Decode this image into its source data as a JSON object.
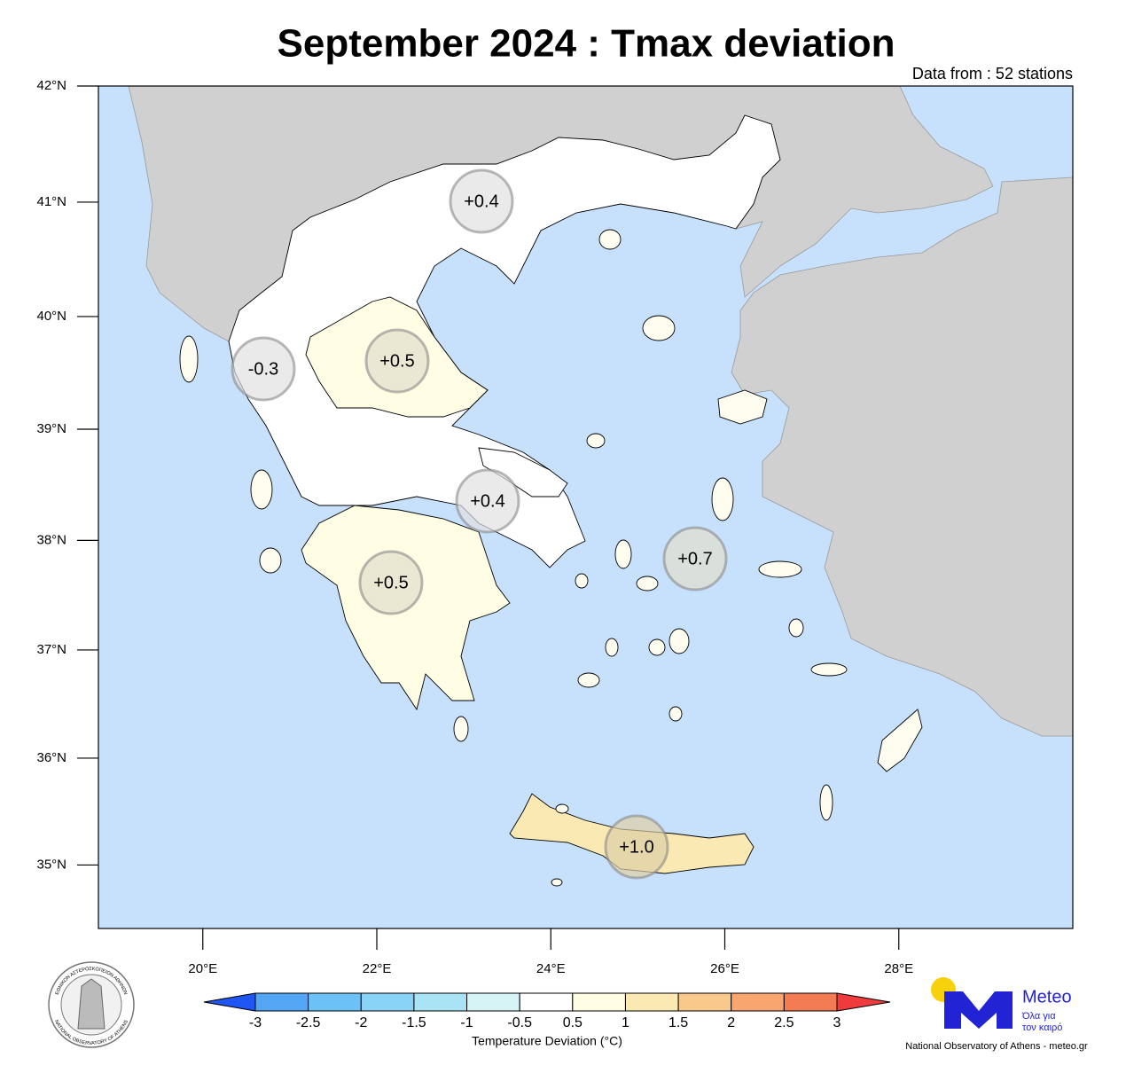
{
  "title": "September 2024 : Tmax deviation",
  "subtitle": "Data from : 52 stations",
  "map": {
    "xlim": [
      18.8,
      30
    ],
    "ylim": [
      34.4,
      42
    ],
    "xticks": [
      {
        "value": 20,
        "label": "20°E"
      },
      {
        "value": 22,
        "label": "22°E"
      },
      {
        "value": 24,
        "label": "24°E"
      },
      {
        "value": 26,
        "label": "26°E"
      },
      {
        "value": 28,
        "label": "28°E"
      }
    ],
    "yticks": [
      {
        "value": 35,
        "label": "35°N"
      },
      {
        "value": 36,
        "label": "36°N"
      },
      {
        "value": 37,
        "label": "37°N"
      },
      {
        "value": 38,
        "label": "38°N"
      },
      {
        "value": 39,
        "label": "39°N"
      },
      {
        "value": 40,
        "label": "40°N"
      },
      {
        "value": 41,
        "label": "41°N"
      },
      {
        "value": 42,
        "label": "42°N"
      }
    ]
  },
  "regions": {
    "values": [
      0.4,
      -0.3,
      0.5,
      0.4,
      0.5,
      0.7,
      1.0
    ],
    "value_labels": [
      "+0.4",
      "-0.3",
      "+0.5",
      "+0.4",
      "+0.5",
      "+0.7",
      "+1.0"
    ]
  },
  "colorbar": {
    "title": "Temperature Deviation (°C)",
    "boundaries": [
      -3,
      -2.5,
      -2,
      -1.5,
      -1,
      -0.5,
      0.5,
      1,
      1.5,
      2,
      2.5,
      3
    ],
    "colors": [
      "#1f55f0",
      "#52a6f4",
      "#6cc2f6",
      "#88d3f6",
      "#aae3f4",
      "#d6f4f6",
      "#ffffff",
      "#fffde4",
      "#fbe9b4",
      "#f8c98a",
      "#f8a570",
      "#f47c55",
      "#ef3b3b"
    ]
  },
  "logo": {
    "name": "Meteo",
    "tagline": [
      "Όλα για",
      "τον καιρό"
    ]
  },
  "seal": {
    "top": "ΕΘΝΙΚΟΝ ΑΣΤΕΡΟΣΚΟΠΕΙΟΝ ΑΘΗΝΩΝ",
    "bottom": "NATIONAL OBSERVATORY OF ATHENS"
  },
  "footer": "National Observatory of Athens - meteo.gr"
}
